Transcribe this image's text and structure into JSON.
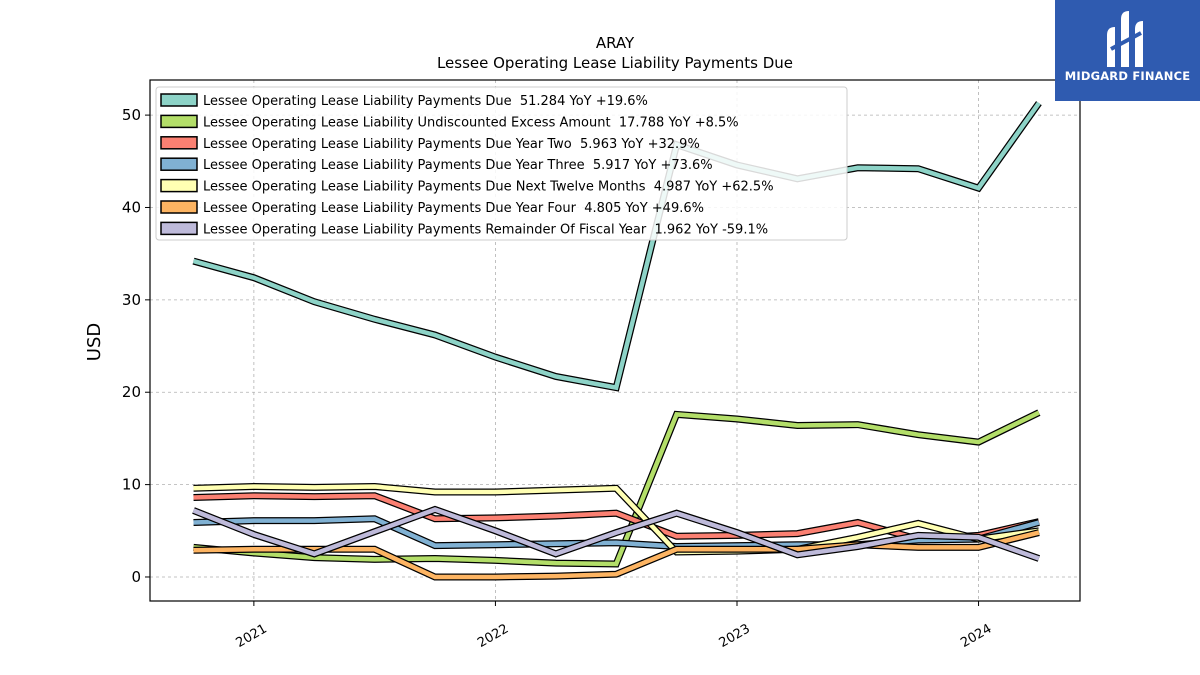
{
  "chart_data": {
    "type": "line",
    "title": "ARAY",
    "subtitle": "Lessee Operating Lease Liability Payments Due",
    "xlabel": "",
    "ylabel": "USD",
    "ylim": [
      -2.6,
      53.8
    ],
    "xlim": [
      2020.57,
      2024.42
    ],
    "x_ticks": [
      2021,
      2022,
      2023,
      2024
    ],
    "y_ticks": [
      0,
      10,
      20,
      30,
      40,
      50
    ],
    "grid": true,
    "legend_position": "top-left",
    "x": [
      2020.75,
      2021.0,
      2021.25,
      2021.5,
      2021.75,
      2022.0,
      2022.25,
      2022.5,
      2022.75,
      2023.0,
      2023.25,
      2023.5,
      2023.75,
      2024.0,
      2024.25
    ],
    "series": [
      {
        "name": "Lessee Operating Lease Liability Payments Due  51.284 YoY +19.6%",
        "color": "#8dd3c7",
        "values": [
          34.2,
          32.4,
          29.8,
          27.9,
          26.2,
          23.8,
          21.7,
          20.5,
          46.8,
          44.6,
          43.1,
          44.3,
          44.2,
          42.1,
          51.3
        ]
      },
      {
        "name": "Lessee Operating Lease Liability Undiscounted Excess Amount  17.788 YoY +8.5%",
        "color": "#b3de69",
        "values": [
          3.2,
          2.6,
          2.1,
          1.9,
          2.0,
          1.8,
          1.5,
          1.4,
          17.6,
          17.1,
          16.4,
          16.5,
          15.4,
          14.6,
          17.8
        ]
      },
      {
        "name": "Lessee Operating Lease Liability Payments Due Year Two  5.963 YoY +32.9%",
        "color": "#fb8072",
        "values": [
          8.6,
          8.8,
          8.7,
          8.8,
          6.3,
          6.4,
          6.6,
          6.9,
          4.4,
          4.5,
          4.7,
          5.9,
          4.1,
          4.5,
          6.0
        ]
      },
      {
        "name": "Lessee Operating Lease Liability Payments Due Year Three  5.917 YoY +73.6%",
        "color": "#80b1d3",
        "values": [
          5.9,
          6.1,
          6.1,
          6.3,
          3.4,
          3.5,
          3.6,
          3.7,
          3.3,
          3.4,
          3.5,
          3.5,
          4.0,
          4.1,
          5.9
        ]
      },
      {
        "name": "Lessee Operating Lease Liability Payments Due Next Twelve Months  4.987 YoY +62.5%",
        "color": "#ffffb3",
        "values": [
          9.6,
          9.8,
          9.7,
          9.8,
          9.2,
          9.2,
          9.4,
          9.6,
          2.7,
          2.8,
          3.0,
          4.3,
          5.8,
          4.1,
          5.0
        ]
      },
      {
        "name": "Lessee Operating Lease Liability Payments Due Year Four  4.805 YoY +49.6%",
        "color": "#fdb462",
        "values": [
          2.9,
          3.0,
          3.0,
          3.0,
          0.0,
          0.0,
          0.1,
          0.3,
          3.0,
          3.0,
          3.0,
          3.5,
          3.2,
          3.2,
          4.8
        ]
      },
      {
        "name": "Lessee Operating Lease Liability Payments Remainder Of Fiscal Year  1.962 YoY -59.1%",
        "color": "#bebada",
        "values": [
          7.2,
          4.6,
          2.5,
          4.9,
          7.3,
          5.0,
          2.5,
          4.8,
          6.9,
          4.8,
          2.4,
          3.3,
          4.5,
          4.3,
          2.0
        ]
      }
    ]
  },
  "logo": {
    "text": "MIDGARD FINANCE",
    "background": "#2f5bb0"
  }
}
